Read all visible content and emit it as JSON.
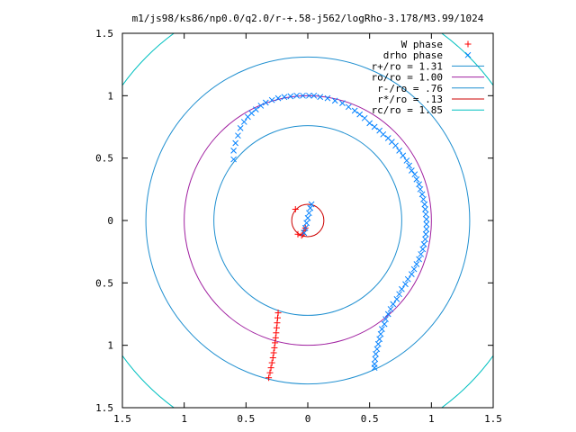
{
  "chart_data": {
    "type": "scatter",
    "title": "m1/js98/ks86/np0.0/q2.0/r-+.58-j562/logRho-3.178/M3.99/1024",
    "xlabel": "",
    "ylabel": "",
    "xlim": [
      -1.5,
      1.5
    ],
    "ylim": [
      -1.5,
      1.5
    ],
    "x_ticks": [
      "1.5",
      "1",
      "0.5",
      "0",
      "0.5",
      "1",
      "1.5"
    ],
    "y_ticks": [
      "1.5",
      "1",
      "0.5",
      "0",
      "0.5",
      "1",
      "1.5"
    ],
    "grid": false,
    "legend_position": "top-right",
    "series": [
      {
        "name": "W phase",
        "kind": "points",
        "marker": "plus",
        "color": "#ff0000",
        "points": [
          [
            -0.1,
            0.09
          ],
          [
            -0.08,
            -0.11
          ],
          [
            -0.05,
            -0.12
          ],
          [
            -0.04,
            -0.11
          ],
          [
            -0.03,
            -0.08
          ],
          [
            -0.02,
            -0.06
          ],
          [
            -0.24,
            -0.74
          ],
          [
            -0.244,
            -0.78
          ],
          [
            -0.248,
            -0.82
          ],
          [
            -0.252,
            -0.86
          ],
          [
            -0.256,
            -0.9
          ],
          [
            -0.26,
            -0.94
          ],
          [
            -0.265,
            -0.98
          ],
          [
            -0.27,
            -1.02
          ],
          [
            -0.276,
            -1.06
          ],
          [
            -0.282,
            -1.1
          ],
          [
            -0.29,
            -1.14
          ],
          [
            -0.298,
            -1.18
          ],
          [
            -0.306,
            -1.22
          ],
          [
            -0.316,
            -1.26
          ]
        ]
      },
      {
        "name": "drho phase",
        "kind": "points",
        "marker": "cross",
        "color": "#0080ff",
        "points": [
          [
            -0.6,
            0.49
          ],
          [
            -0.6,
            0.56
          ],
          [
            -0.585,
            0.62
          ],
          [
            -0.565,
            0.68
          ],
          [
            -0.545,
            0.74
          ],
          [
            -0.515,
            0.79
          ],
          [
            -0.485,
            0.83
          ],
          [
            -0.455,
            0.86
          ],
          [
            -0.42,
            0.89
          ],
          [
            -0.38,
            0.92
          ],
          [
            -0.34,
            0.945
          ],
          [
            -0.29,
            0.965
          ],
          [
            -0.24,
            0.98
          ],
          [
            -0.19,
            0.99
          ],
          [
            -0.14,
            0.995
          ],
          [
            -0.09,
            1.0
          ],
          [
            -0.04,
            1.0
          ],
          [
            0.01,
            1.0
          ],
          [
            0.05,
            1.0
          ],
          [
            0.1,
            0.99
          ],
          [
            0.16,
            0.98
          ],
          [
            0.22,
            0.96
          ],
          [
            0.28,
            0.94
          ],
          [
            0.33,
            0.91
          ],
          [
            0.38,
            0.88
          ],
          [
            0.42,
            0.85
          ],
          [
            0.46,
            0.82
          ],
          [
            0.5,
            0.78
          ],
          [
            0.54,
            0.75
          ],
          [
            0.58,
            0.72
          ],
          [
            0.61,
            0.69
          ],
          [
            0.65,
            0.66
          ],
          [
            0.68,
            0.63
          ],
          [
            0.71,
            0.6
          ],
          [
            0.74,
            0.56
          ],
          [
            0.77,
            0.52
          ],
          [
            0.8,
            0.48
          ],
          [
            0.82,
            0.44
          ],
          [
            0.84,
            0.4
          ],
          [
            0.865,
            0.37
          ],
          [
            0.88,
            0.33
          ],
          [
            0.9,
            0.29
          ],
          [
            0.91,
            0.25
          ],
          [
            0.925,
            0.21
          ],
          [
            0.935,
            0.17
          ],
          [
            0.945,
            0.13
          ],
          [
            0.95,
            0.09
          ],
          [
            0.955,
            0.05
          ],
          [
            0.96,
            0.01
          ],
          [
            0.96,
            -0.03
          ],
          [
            0.96,
            -0.07
          ],
          [
            0.955,
            -0.11
          ],
          [
            0.95,
            -0.15
          ],
          [
            0.94,
            -0.19
          ],
          [
            0.93,
            -0.23
          ],
          [
            0.915,
            -0.27
          ],
          [
            0.9,
            -0.31
          ],
          [
            0.88,
            -0.35
          ],
          [
            0.86,
            -0.39
          ],
          [
            0.84,
            -0.43
          ],
          [
            0.81,
            -0.47
          ],
          [
            0.79,
            -0.51
          ],
          [
            0.76,
            -0.55
          ],
          [
            0.74,
            -0.59
          ],
          [
            0.72,
            -0.63
          ],
          [
            0.69,
            -0.67
          ],
          [
            0.67,
            -0.71
          ],
          [
            0.65,
            -0.75
          ],
          [
            0.63,
            -0.79
          ],
          [
            0.62,
            -0.83
          ],
          [
            0.6,
            -0.87
          ],
          [
            0.59,
            -0.91
          ],
          [
            0.58,
            -0.95
          ],
          [
            0.57,
            -0.99
          ],
          [
            0.56,
            -1.03
          ],
          [
            0.55,
            -1.07
          ],
          [
            0.545,
            -1.11
          ],
          [
            0.54,
            -1.15
          ],
          [
            0.54,
            -1.18
          ],
          [
            -0.03,
            -0.1
          ],
          [
            -0.02,
            -0.06
          ],
          [
            -0.01,
            -0.02
          ],
          [
            0.0,
            0.02
          ],
          [
            0.01,
            0.06
          ],
          [
            0.02,
            0.1
          ],
          [
            0.03,
            0.13
          ]
        ]
      },
      {
        "name": "r+/ro = 1.31",
        "kind": "circle",
        "radius": 1.31,
        "color": "#1f8fd0"
      },
      {
        "name": "ro/ro = 1.00",
        "kind": "circle",
        "radius": 1.0,
        "color": "#a020a0"
      },
      {
        "name": "r-/ro = .76",
        "kind": "circle",
        "radius": 0.76,
        "color": "#1f8fd0"
      },
      {
        "name": "r*/ro = .13",
        "kind": "circle",
        "radius": 0.13,
        "color": "#cc0000"
      },
      {
        "name": "rc/ro = 1.85",
        "kind": "circle",
        "radius": 1.85,
        "color": "#00c0c0"
      }
    ]
  }
}
